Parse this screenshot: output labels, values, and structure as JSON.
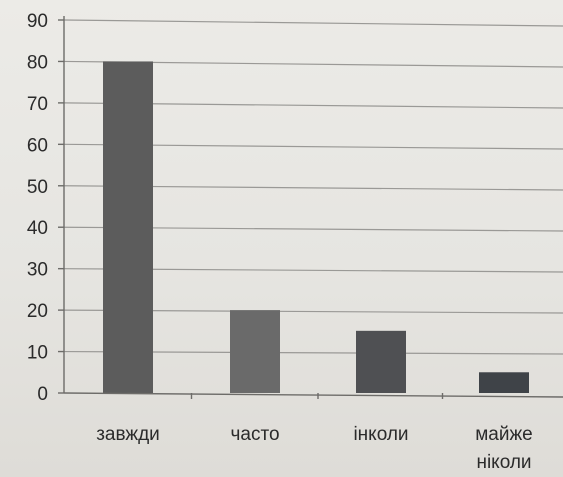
{
  "chart_data": {
    "type": "bar",
    "title": "",
    "xlabel": "",
    "ylabel": "",
    "categories": [
      "завжди",
      "часто",
      "інколи",
      "майже\nніколи"
    ],
    "values": [
      80,
      20,
      15,
      5
    ],
    "ylim": [
      0,
      90
    ],
    "y_ticks": [
      0,
      10,
      20,
      30,
      40,
      50,
      60,
      70,
      80,
      90
    ],
    "grid": true,
    "legend": "none",
    "bar_colors": [
      "#5c5c5c",
      "#6a6a6a",
      "#4f5053",
      "#3f4348"
    ]
  }
}
